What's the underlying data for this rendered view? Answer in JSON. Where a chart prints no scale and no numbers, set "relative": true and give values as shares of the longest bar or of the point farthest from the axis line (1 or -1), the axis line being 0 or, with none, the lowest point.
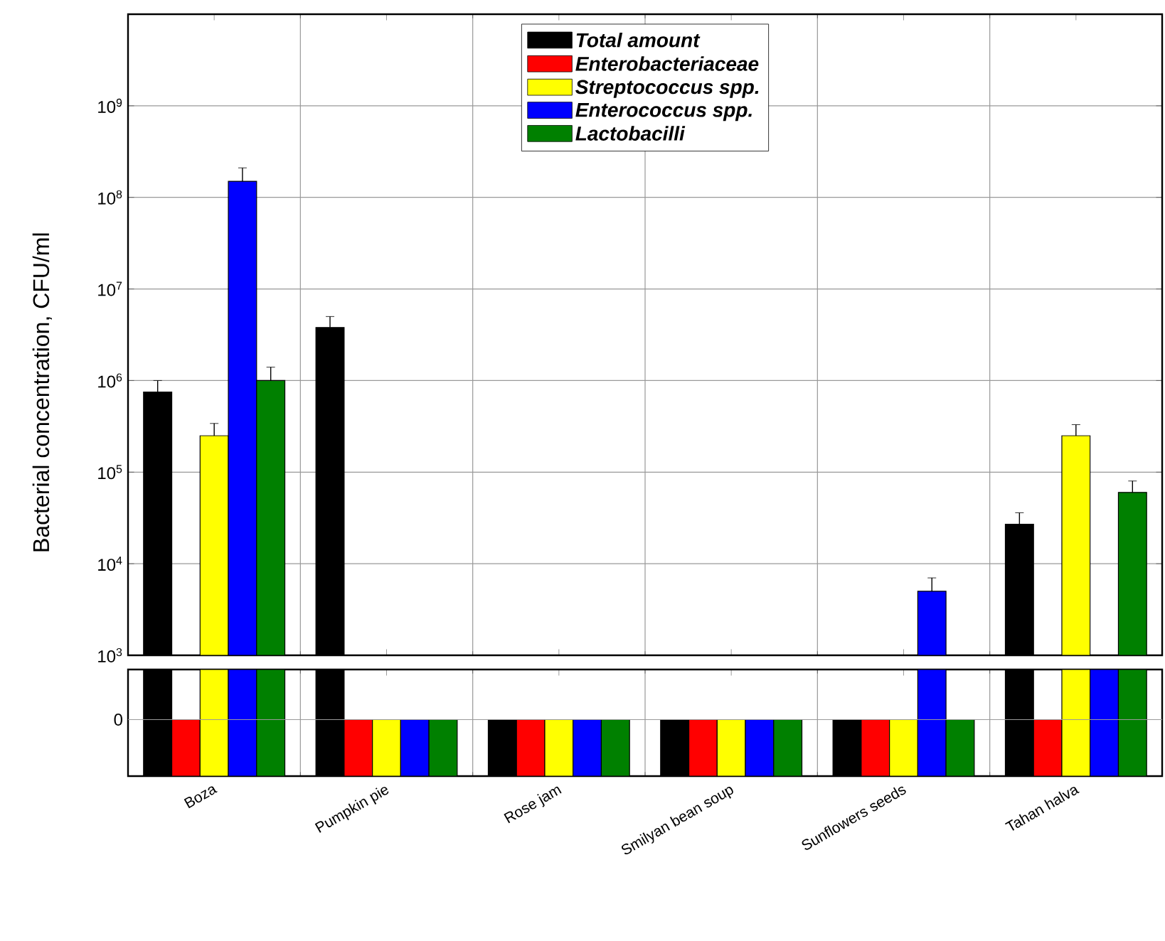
{
  "chart_data": [
    {
      "type": "bar",
      "ylabel": "Bacterial concentration, CFU/ml",
      "categories": [
        null,
        null,
        null,
        null,
        null,
        null
      ],
      "log": "y",
      "ylim": [
        1000,
        10000000000
      ],
      "yticks": [
        {
          "value": 1000,
          "label": "10$^{3}$"
        },
        {
          "value": 10000,
          "label": "10$^{4}$"
        },
        {
          "value": 100000,
          "label": "10$^{5}$"
        },
        {
          "value": 1000000,
          "label": "10$^{6}$"
        },
        {
          "value": 10000000,
          "label": "10$^{7}$"
        },
        {
          "value": 100000000,
          "label": "10$^{8}$"
        },
        {
          "value": 1000000000,
          "label": "10$^{9}$"
        }
      ],
      "grid": true,
      "legend": "top",
      "tick_labels": "y",
      "series": [
        {
          "name": "Total amount",
          "color": "#000000",
          "values": [
            750000,
            3800000,
            null,
            null,
            null,
            27000
          ],
          "errors": [
            250000,
            1200000,
            null,
            null,
            null,
            9000
          ]
        },
        {
          "name": "Enterobacteriaceae",
          "color": "#ff0000",
          "values": [
            null,
            null,
            null,
            null,
            null,
            null
          ]
        },
        {
          "name": "Streptococcus spp.",
          "color": "#ffff00",
          "values": [
            250000,
            null,
            null,
            null,
            null,
            250000
          ],
          "errors": [
            90000,
            null,
            null,
            null,
            null,
            80000
          ]
        },
        {
          "name": "Enterococcus spp.",
          "color": "#0000ff",
          "values": [
            150000000,
            null,
            null,
            null,
            5000,
            null
          ],
          "errors": [
            60000000,
            null,
            null,
            null,
            2000,
            null
          ]
        },
        {
          "name": "Lactobacilli",
          "color": "#008000",
          "values": [
            1000000,
            null,
            null,
            null,
            null,
            60000
          ],
          "errors": [
            400000,
            null,
            null,
            null,
            null,
            20000
          ]
        }
      ]
    },
    {
      "type": "bar",
      "categories": [
        "Boza",
        "Pumpkin pie",
        "Rose jam",
        "Smilyan bean soup",
        "Sunflowers seeds",
        "Tahan halva"
      ],
      "relative": true,
      "grid": true,
      "annotations": [
        "0"
      ],
      "series": [
        {
          "color": "#000000",
          "values": [
            1,
            1,
            0.53,
            0.53,
            0.53,
            1
          ]
        },
        {
          "color": "#ff0000",
          "values": [
            0.53,
            0.53,
            0.53,
            0.53,
            0.53,
            0.53
          ]
        },
        {
          "color": "#ffff00",
          "values": [
            1,
            0.53,
            0.53,
            0.53,
            0.53,
            1
          ]
        },
        {
          "color": "#0000ff",
          "values": [
            1,
            0.53,
            0.53,
            0.53,
            1,
            1
          ]
        },
        {
          "color": "#008000",
          "values": [
            1,
            0.53,
            0.53,
            0.53,
            0.53,
            1
          ]
        }
      ]
    }
  ]
}
